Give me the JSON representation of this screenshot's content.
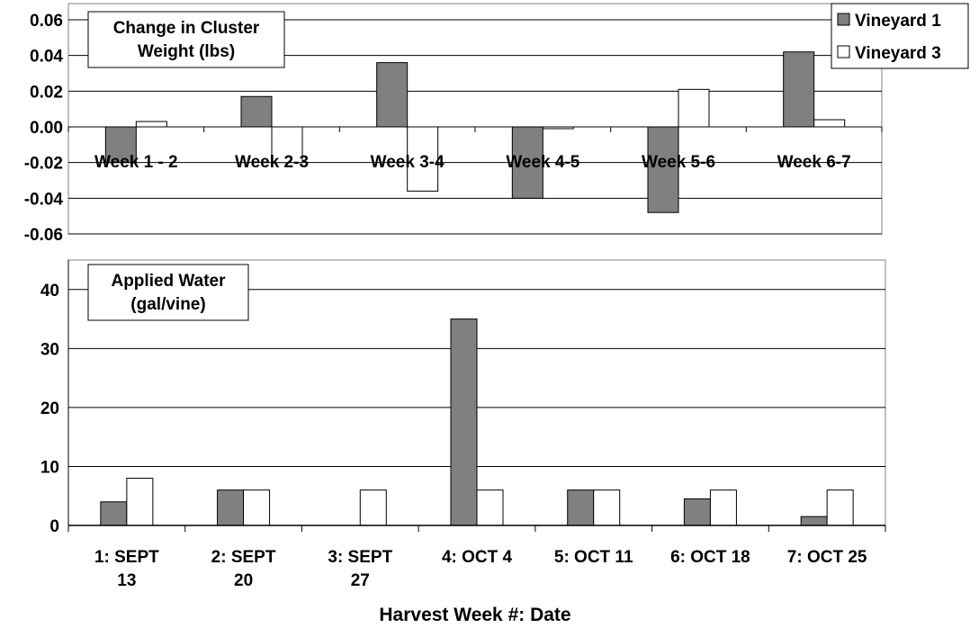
{
  "colors": {
    "vineyard1": "#808080",
    "vineyard3": "#ffffff",
    "grid": "#000000",
    "background": "#ffffff"
  },
  "legend": [
    {
      "label": "Vineyard 1",
      "color": "#808080"
    },
    {
      "label": "Vineyard 3",
      "color": "#ffffff"
    }
  ],
  "x_axis_title": "Harvest Week #: Date",
  "chart_data": [
    {
      "type": "bar",
      "title_lines": [
        "Change in Cluster",
        "Weight (lbs)"
      ],
      "categories": [
        "Week 1 - 2",
        "Week 2-3",
        "Week 3-4",
        "Week 4-5",
        "Week 5-6",
        "Week 6-7"
      ],
      "series": [
        {
          "name": "Vineyard 1",
          "values": [
            -0.02,
            0.017,
            0.036,
            -0.04,
            -0.048,
            0.042
          ]
        },
        {
          "name": "Vineyard 3",
          "values": [
            0.003,
            -0.02,
            -0.036,
            -0.001,
            0.021,
            0.004
          ]
        }
      ],
      "ylim": [
        -0.06,
        0.06
      ],
      "yticks": [
        "0.06",
        "0.04",
        "0.02",
        "0.00",
        "-0.02",
        "-0.04",
        "-0.06"
      ],
      "grid": true,
      "legend_position": "top-right"
    },
    {
      "type": "bar",
      "title_lines": [
        "Applied Water",
        "(gal/vine)"
      ],
      "categories": [
        [
          "1: SEPT",
          "13"
        ],
        [
          "2: SEPT",
          "20"
        ],
        [
          "3: SEPT",
          "27"
        ],
        [
          "4: OCT 4"
        ],
        [
          "5: OCT 11"
        ],
        [
          "6: OCT 18"
        ],
        [
          "7: OCT 25"
        ]
      ],
      "series": [
        {
          "name": "Vineyard 1",
          "values": [
            4,
            6,
            0,
            35,
            6,
            4.5,
            1.5
          ]
        },
        {
          "name": "Vineyard 3",
          "values": [
            8,
            6,
            6,
            6,
            6,
            6,
            6
          ]
        }
      ],
      "ylim": [
        0,
        45
      ],
      "yticks": [
        "40",
        "30",
        "20",
        "10",
        "0"
      ],
      "xlabel": "Harvest Week #: Date",
      "grid": true
    }
  ]
}
